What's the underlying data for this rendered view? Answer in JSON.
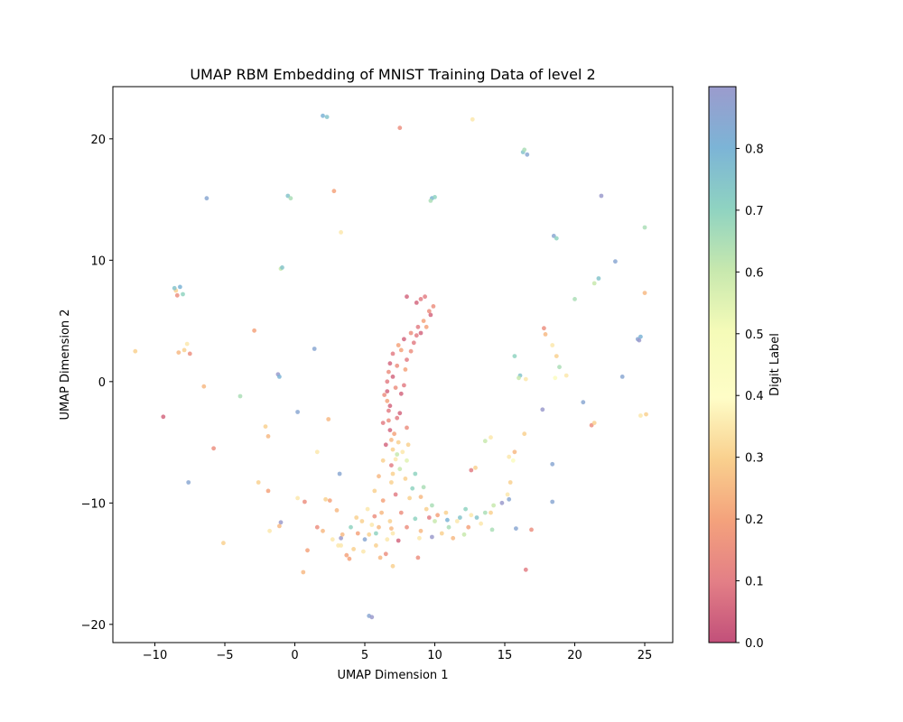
{
  "chart_data": {
    "type": "scatter",
    "title": "UMAP RBM Embedding of MNIST Training Data of level 2",
    "xlabel": "UMAP Dimension 1",
    "ylabel": "UMAP Dimension 2",
    "xlim": [
      -13,
      27
    ],
    "ylim": [
      -21.5,
      24.3
    ],
    "xticks": [
      -10,
      -5,
      0,
      5,
      10,
      15,
      20,
      25
    ],
    "yticks": [
      -20,
      -10,
      0,
      10,
      20
    ],
    "grid": false,
    "colormap": "Spectral",
    "colorbar": {
      "label": "Digit Label",
      "range": [
        0.0,
        0.9
      ],
      "ticks": [
        0.0,
        0.1,
        0.2,
        0.3,
        0.4,
        0.5,
        0.6,
        0.7,
        0.8
      ],
      "tick_labels": [
        "0.0",
        "0.1",
        "0.2",
        "0.3",
        "0.4",
        "0.5",
        "0.6",
        "0.7",
        "0.8"
      ]
    },
    "series": [
      {
        "points": [
          [
            8.0,
            7.0,
            0.05
          ],
          [
            9.0,
            6.8,
            0.1
          ],
          [
            9.9,
            6.2,
            0.15
          ],
          [
            9.7,
            5.5,
            0.05
          ],
          [
            9.2,
            5.0,
            0.2
          ],
          [
            8.8,
            4.5,
            0.1
          ],
          [
            8.3,
            4.0,
            0.15
          ],
          [
            7.8,
            3.5,
            0.05
          ],
          [
            7.4,
            3.0,
            0.2
          ],
          [
            7.0,
            2.3,
            0.1
          ],
          [
            6.8,
            1.5,
            0.05
          ],
          [
            6.7,
            0.8,
            0.15
          ],
          [
            6.6,
            0.0,
            0.1
          ],
          [
            6.6,
            -0.8,
            0.05
          ],
          [
            6.6,
            -1.6,
            0.2
          ],
          [
            6.7,
            -2.4,
            0.1
          ],
          [
            6.7,
            -3.2,
            0.15
          ],
          [
            6.8,
            -4.0,
            0.05
          ],
          [
            6.9,
            -4.8,
            0.25
          ],
          [
            7.0,
            -5.6,
            0.3
          ],
          [
            7.2,
            -6.4,
            0.35
          ],
          [
            7.5,
            -7.2,
            0.6
          ],
          [
            7.9,
            -8.0,
            0.3
          ],
          [
            8.4,
            -8.8,
            0.7
          ],
          [
            9.0,
            -9.5,
            0.25
          ],
          [
            9.8,
            -10.2,
            0.65
          ],
          [
            10.8,
            -10.8,
            0.3
          ],
          [
            11.8,
            -11.2,
            0.75
          ],
          [
            12.6,
            -11.0,
            0.35
          ],
          [
            7.3,
            -3.0,
            0.1
          ],
          [
            7.6,
            -1.0,
            0.05
          ],
          [
            7.9,
            1.0,
            0.2
          ],
          [
            8.3,
            2.5,
            0.15
          ],
          [
            8.7,
            3.8,
            0.1
          ],
          [
            7.2,
            -0.5,
            0.15
          ],
          [
            7.4,
            -5.0,
            0.3
          ],
          [
            8.0,
            -6.5,
            0.55
          ],
          [
            6.3,
            -6.5,
            0.3
          ],
          [
            6.0,
            -7.8,
            0.25
          ],
          [
            5.7,
            -9.0,
            0.3
          ],
          [
            5.2,
            -10.5,
            0.35
          ],
          [
            4.8,
            -11.5,
            0.3
          ],
          [
            4.5,
            -12.5,
            0.2
          ],
          [
            5.0,
            -13.0,
            0.85
          ],
          [
            5.8,
            -13.5,
            0.3
          ],
          [
            6.5,
            -14.2,
            0.15
          ],
          [
            4.2,
            -13.8,
            0.3
          ],
          [
            3.7,
            -14.3,
            0.2
          ],
          [
            3.3,
            -13.5,
            0.35
          ],
          [
            6.0,
            -12.0,
            0.25
          ],
          [
            7.0,
            -12.5,
            0.35
          ],
          [
            8.0,
            -12.0,
            0.15
          ],
          [
            9.0,
            -12.3,
            0.25
          ],
          [
            9.8,
            -12.8,
            0.9
          ],
          [
            10.5,
            -12.5,
            0.3
          ],
          [
            11.0,
            -12.0,
            0.65
          ],
          [
            11.6,
            -11.5,
            0.35
          ],
          [
            12.4,
            -12.0,
            0.2
          ],
          [
            13.0,
            -11.2,
            0.75
          ],
          [
            13.6,
            -10.8,
            0.65
          ],
          [
            14.2,
            -10.2,
            0.6
          ],
          [
            14.8,
            -10.0,
            0.9
          ],
          [
            15.3,
            -9.7,
            0.85
          ],
          [
            14.0,
            -10.8,
            0.3
          ],
          [
            12.2,
            -10.5,
            0.7
          ],
          [
            10.2,
            -11.0,
            0.2
          ],
          [
            9.4,
            -10.5,
            0.3
          ],
          [
            8.6,
            -11.3,
            0.7
          ],
          [
            7.6,
            -10.8,
            0.15
          ],
          [
            6.8,
            -11.5,
            0.3
          ],
          [
            6.2,
            -10.8,
            0.25
          ],
          [
            5.5,
            -11.8,
            0.35
          ],
          [
            7.2,
            -9.3,
            0.1
          ],
          [
            8.2,
            -9.6,
            0.3
          ],
          [
            9.2,
            -8.7,
            0.65
          ],
          [
            6.9,
            -8.3,
            0.3
          ],
          [
            8.6,
            -7.6,
            0.7
          ],
          [
            7.7,
            -5.8,
            0.35
          ],
          [
            6.9,
            -6.9,
            0.1
          ],
          [
            8.1,
            -5.2,
            0.3
          ],
          [
            6.5,
            -5.2,
            0.05
          ],
          [
            7.1,
            -4.3,
            0.2
          ],
          [
            6.3,
            -3.4,
            0.1
          ],
          [
            7.5,
            -2.6,
            0.05
          ],
          [
            8.0,
            -3.8,
            0.15
          ],
          [
            7.8,
            -0.3,
            0.1
          ],
          [
            6.4,
            -1.1,
            0.15
          ],
          [
            7.0,
            0.4,
            0.05
          ],
          [
            8.0,
            1.8,
            0.1
          ],
          [
            7.6,
            2.6,
            0.2
          ],
          [
            8.5,
            3.2,
            0.1
          ],
          [
            9.0,
            4.0,
            0.05
          ],
          [
            9.4,
            4.5,
            0.2
          ],
          [
            9.6,
            5.8,
            0.15
          ],
          [
            8.7,
            6.5,
            0.05
          ],
          [
            9.3,
            7.0,
            0.1
          ],
          [
            7.3,
            1.3,
            0.15
          ],
          [
            6.8,
            -2.0,
            0.05
          ],
          [
            7.3,
            -6.0,
            0.6
          ],
          [
            7.0,
            -7.6,
            0.3
          ],
          [
            6.3,
            -9.8,
            0.2
          ],
          [
            5.8,
            -12.5,
            0.7
          ],
          [
            6.6,
            -13.0,
            0.35
          ],
          [
            5.3,
            -12.6,
            0.3
          ],
          [
            4.9,
            -14.0,
            0.35
          ],
          [
            6.1,
            -14.5,
            0.25
          ],
          [
            2.2,
            -9.7,
            0.3
          ],
          [
            2.5,
            -9.8,
            0.2
          ],
          [
            3.0,
            -10.6,
            0.25
          ],
          [
            2.7,
            -13.0,
            0.35
          ],
          [
            3.3,
            -12.9,
            0.9
          ],
          [
            2.0,
            -12.3,
            0.25
          ],
          [
            1.6,
            -12.0,
            0.15
          ],
          [
            0.9,
            -13.9,
            0.2
          ],
          [
            -1.0,
            -11.6,
            0.9
          ],
          [
            -1.1,
            -11.9,
            0.25
          ],
          [
            -1.8,
            -12.3,
            0.35
          ],
          [
            -1.9,
            -9.0,
            0.2
          ],
          [
            -2.6,
            -8.3,
            0.3
          ],
          [
            0.2,
            -9.6,
            0.35
          ],
          [
            0.7,
            -9.9,
            0.15
          ],
          [
            1.6,
            -5.8,
            0.35
          ],
          [
            2.4,
            -3.1,
            0.25
          ],
          [
            3.2,
            -7.6,
            0.85
          ],
          [
            3.4,
            -12.6,
            0.25
          ],
          [
            3.1,
            -13.5,
            0.35
          ],
          [
            3.9,
            -14.6,
            0.2
          ],
          [
            0.6,
            -15.7,
            0.25
          ],
          [
            5.3,
            -19.3,
            0.85
          ],
          [
            5.5,
            -19.4,
            0.9
          ],
          [
            -5.1,
            -13.3,
            0.3
          ],
          [
            -5.8,
            -5.5,
            0.15
          ],
          [
            -7.6,
            -8.3,
            0.85
          ],
          [
            -9.4,
            -2.9,
            0.05
          ],
          [
            -6.5,
            -0.4,
            0.25
          ],
          [
            -3.9,
            -1.2,
            0.65
          ],
          [
            -2.1,
            -3.7,
            0.3
          ],
          [
            -1.9,
            -4.5,
            0.25
          ],
          [
            0.2,
            -2.5,
            0.85
          ],
          [
            -8.3,
            2.4,
            0.25
          ],
          [
            -7.9,
            2.6,
            0.3
          ],
          [
            -7.7,
            3.1,
            0.35
          ],
          [
            -7.5,
            2.3,
            0.15
          ],
          [
            -11.4,
            2.5,
            0.3
          ],
          [
            -2.9,
            4.2,
            0.2
          ],
          [
            -1.2,
            0.6,
            0.9
          ],
          [
            -1.1,
            0.4,
            0.8
          ],
          [
            1.4,
            2.7,
            0.85
          ],
          [
            -8.5,
            7.5,
            0.3
          ],
          [
            -8.2,
            7.8,
            0.8
          ],
          [
            -8.0,
            7.2,
            0.7
          ],
          [
            -8.4,
            7.1,
            0.15
          ],
          [
            -8.6,
            7.7,
            0.75
          ],
          [
            -1.0,
            9.3,
            0.6
          ],
          [
            -0.9,
            9.4,
            0.75
          ],
          [
            -6.3,
            15.1,
            0.85
          ],
          [
            -0.5,
            15.3,
            0.75
          ],
          [
            -0.3,
            15.1,
            0.65
          ],
          [
            2.8,
            15.7,
            0.2
          ],
          [
            3.3,
            12.3,
            0.35
          ],
          [
            2.0,
            21.9,
            0.8
          ],
          [
            2.3,
            21.8,
            0.75
          ],
          [
            7.5,
            20.9,
            0.15
          ],
          [
            12.7,
            21.6,
            0.35
          ],
          [
            9.8,
            15.1,
            0.8
          ],
          [
            10.0,
            15.2,
            0.7
          ],
          [
            9.7,
            14.9,
            0.65
          ],
          [
            16.3,
            18.9,
            0.75
          ],
          [
            16.6,
            18.7,
            0.85
          ],
          [
            16.4,
            19.1,
            0.65
          ],
          [
            18.5,
            12.0,
            0.85
          ],
          [
            18.7,
            11.8,
            0.7
          ],
          [
            21.9,
            15.3,
            0.9
          ],
          [
            25.0,
            12.7,
            0.65
          ],
          [
            22.9,
            9.9,
            0.85
          ],
          [
            21.7,
            8.5,
            0.75
          ],
          [
            21.4,
            8.1,
            0.6
          ],
          [
            20.0,
            6.8,
            0.65
          ],
          [
            25.0,
            7.3,
            0.25
          ],
          [
            24.5,
            3.5,
            0.85
          ],
          [
            24.7,
            3.7,
            0.8
          ],
          [
            24.6,
            3.4,
            0.9
          ],
          [
            23.4,
            0.4,
            0.85
          ],
          [
            17.8,
            4.4,
            0.15
          ],
          [
            17.9,
            3.9,
            0.25
          ],
          [
            18.4,
            3.0,
            0.35
          ],
          [
            18.7,
            2.1,
            0.3
          ],
          [
            18.9,
            1.2,
            0.65
          ],
          [
            18.6,
            0.3,
            0.45
          ],
          [
            19.4,
            0.5,
            0.35
          ],
          [
            15.7,
            2.1,
            0.7
          ],
          [
            16.1,
            0.5,
            0.75
          ],
          [
            16.0,
            0.3,
            0.6
          ],
          [
            16.5,
            0.2,
            0.35
          ],
          [
            20.6,
            -1.7,
            0.85
          ],
          [
            17.7,
            -2.3,
            0.9
          ],
          [
            21.2,
            -3.6,
            0.15
          ],
          [
            21.4,
            -3.4,
            0.3
          ],
          [
            24.7,
            -2.8,
            0.35
          ],
          [
            25.1,
            -2.7,
            0.3
          ],
          [
            16.4,
            -4.3,
            0.3
          ],
          [
            14.0,
            -4.6,
            0.35
          ],
          [
            13.6,
            -4.9,
            0.6
          ],
          [
            15.7,
            -5.8,
            0.25
          ],
          [
            15.3,
            -6.2,
            0.35
          ],
          [
            15.6,
            -6.5,
            0.45
          ],
          [
            18.4,
            -6.8,
            0.85
          ],
          [
            15.4,
            -8.3,
            0.3
          ],
          [
            15.2,
            -9.3,
            0.35
          ],
          [
            18.4,
            -9.9,
            0.85
          ],
          [
            12.6,
            -7.3,
            0.1
          ],
          [
            12.9,
            -7.1,
            0.3
          ],
          [
            16.9,
            -12.2,
            0.15
          ],
          [
            15.8,
            -12.1,
            0.85
          ],
          [
            14.1,
            -12.2,
            0.65
          ],
          [
            16.5,
            -15.5,
            0.1
          ],
          [
            8.8,
            -14.5,
            0.15
          ],
          [
            7.0,
            -15.2,
            0.3
          ],
          [
            12.1,
            -12.6,
            0.6
          ],
          [
            13.3,
            -11.7,
            0.35
          ],
          [
            10.9,
            -11.4,
            0.8
          ],
          [
            11.3,
            -12.9,
            0.25
          ],
          [
            10.0,
            -11.5,
            0.6
          ],
          [
            9.6,
            -11.2,
            0.1
          ],
          [
            8.9,
            -12.9,
            0.35
          ],
          [
            7.4,
            -13.1,
            0.05
          ],
          [
            6.9,
            -12.1,
            0.25
          ],
          [
            4.0,
            -12.0,
            0.7
          ],
          [
            4.4,
            -11.2,
            0.3
          ],
          [
            5.7,
            -11.1,
            0.15
          ]
        ]
      }
    ]
  }
}
